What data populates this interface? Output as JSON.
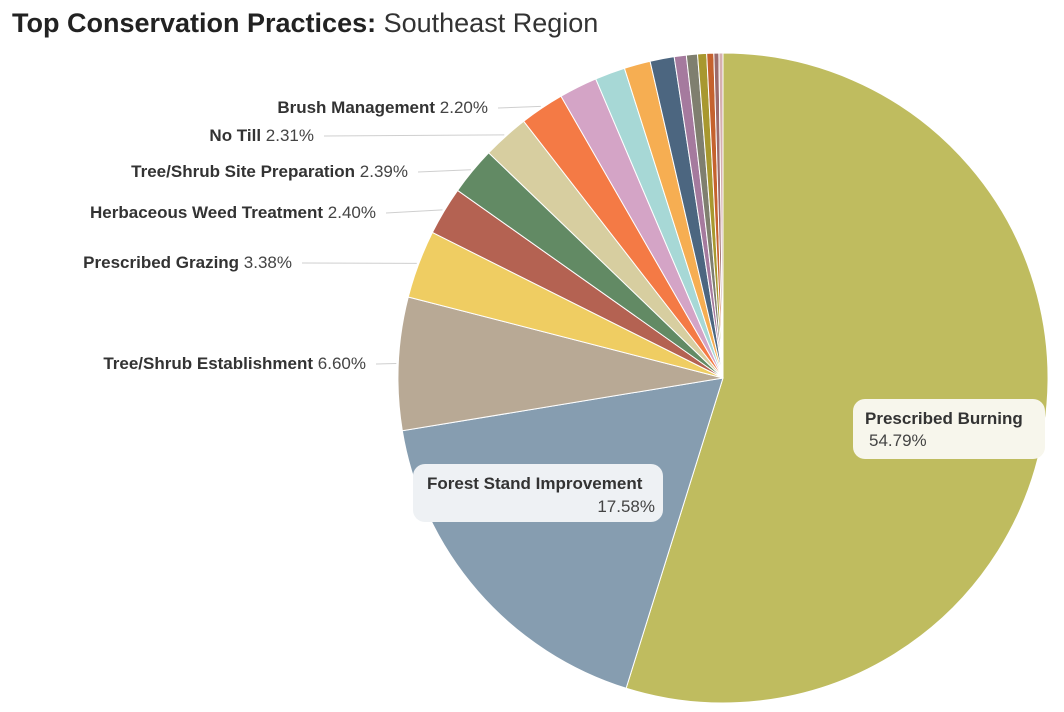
{
  "title": {
    "bold": "Top Conservation Practices:",
    "rest": "Southeast Region"
  },
  "chart_data": {
    "type": "pie",
    "title": "Top Conservation Practices: Southeast Region",
    "slices": [
      {
        "label": "Prescribed Burning",
        "value": 54.79,
        "display": "54.79%",
        "color": "#bfbc5f",
        "label_style": "inside"
      },
      {
        "label": "Forest Stand Improvement",
        "value": 17.58,
        "display": "17.58%",
        "color": "#869db0",
        "label_style": "inside"
      },
      {
        "label": "Tree/Shrub Establishment",
        "value": 6.6,
        "display": "6.60%",
        "color": "#b8a995",
        "label_style": "outside"
      },
      {
        "label": "Prescribed Grazing",
        "value": 3.38,
        "display": "3.38%",
        "color": "#efcd62",
        "label_style": "outside"
      },
      {
        "label": "Herbaceous Weed Treatment",
        "value": 2.4,
        "display": "2.40%",
        "color": "#b46252",
        "label_style": "outside"
      },
      {
        "label": "Tree/Shrub Site Preparation",
        "value": 2.39,
        "display": "2.39%",
        "color": "#628a64",
        "label_style": "outside"
      },
      {
        "label": "No Till",
        "value": 2.31,
        "display": "2.31%",
        "color": "#d7cea0",
        "label_style": "outside"
      },
      {
        "label": "Brush Management",
        "value": 2.2,
        "display": "2.20%",
        "color": "#f47a45",
        "label_style": "outside"
      },
      {
        "label": "",
        "value": 1.9,
        "display": "",
        "color": "#d4a4c6",
        "label_style": "none"
      },
      {
        "label": "",
        "value": 1.5,
        "display": "",
        "color": "#a7d8d6",
        "label_style": "none"
      },
      {
        "label": "",
        "value": 1.3,
        "display": "",
        "color": "#f6ae52",
        "label_style": "none"
      },
      {
        "label": "",
        "value": 1.2,
        "display": "",
        "color": "#4c6680",
        "label_style": "none"
      },
      {
        "label": "",
        "value": 0.6,
        "display": "",
        "color": "#a57a9e",
        "label_style": "none"
      },
      {
        "label": "",
        "value": 0.55,
        "display": "",
        "color": "#7f7f6f",
        "label_style": "none"
      },
      {
        "label": "",
        "value": 0.45,
        "display": "",
        "color": "#a8982f",
        "label_style": "none"
      },
      {
        "label": "",
        "value": 0.35,
        "display": "",
        "color": "#c5622e",
        "label_style": "none"
      },
      {
        "label": "",
        "value": 0.25,
        "display": "",
        "color": "#9c6b6b",
        "label_style": "none"
      },
      {
        "label": "",
        "value": 0.2,
        "display": "",
        "color": "#d6b0b0",
        "label_style": "none"
      }
    ]
  }
}
